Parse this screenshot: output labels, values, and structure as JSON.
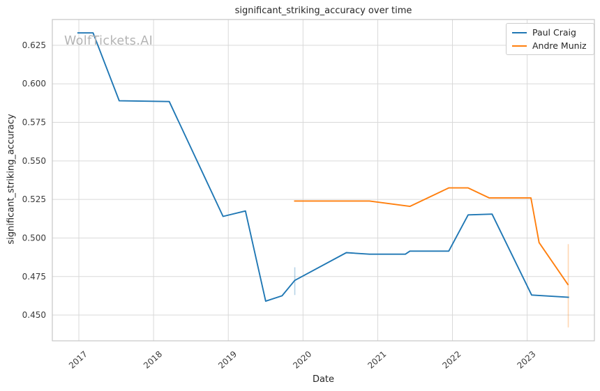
{
  "watermark": "WolfTickets.AI",
  "chart_data": {
    "type": "line",
    "title": "significant_striking_accuracy over time",
    "xlabel": "Date",
    "ylabel": "significant_striking_accuracy",
    "grid": true,
    "legend_position": "upper right",
    "x_domain": [
      2016.645,
      2023.9
    ],
    "y_domain": [
      0.4333,
      0.6417
    ],
    "x_ticks": [
      2017,
      2018,
      2019,
      2020,
      2021,
      2022,
      2023
    ],
    "y_ticks": [
      0.45,
      0.475,
      0.5,
      0.525,
      0.55,
      0.575,
      0.6,
      0.625
    ],
    "series": [
      {
        "name": "Paul Craig",
        "color": "#1f77b4",
        "x": [
          2016.98,
          2017.19,
          2017.54,
          2018.21,
          2018.93,
          2019.23,
          2019.5,
          2019.72,
          2019.89,
          2020.58,
          2020.89,
          2021.37,
          2021.43,
          2021.95,
          2022.21,
          2022.53,
          2023.06,
          2023.56
        ],
        "y": [
          0.633,
          0.633,
          0.589,
          0.5885,
          0.514,
          0.5175,
          0.459,
          0.4625,
          0.4725,
          0.4905,
          0.4895,
          0.4895,
          0.4915,
          0.4915,
          0.515,
          0.5155,
          0.463,
          0.4615
        ]
      },
      {
        "name": "Andre Muniz",
        "color": "#ff7f0e",
        "x": [
          2019.88,
          2020.89,
          2021.43,
          2021.95,
          2022.21,
          2022.49,
          2023.05,
          2023.16,
          2023.55
        ],
        "y": [
          0.524,
          0.524,
          0.5205,
          0.5325,
          0.5325,
          0.526,
          0.526,
          0.497,
          0.4695
        ]
      }
    ],
    "error_bars": [
      {
        "series": "Paul Craig",
        "x": 2019.89,
        "y_min": 0.463,
        "y_max": 0.481
      },
      {
        "series": "Andre Muniz",
        "x": 2023.55,
        "y_min": 0.442,
        "y_max": 0.496
      }
    ]
  },
  "colors": {
    "grid": "#d9d9d9",
    "border": "#c6c6c6",
    "tick_text": "#3b3b3b"
  }
}
